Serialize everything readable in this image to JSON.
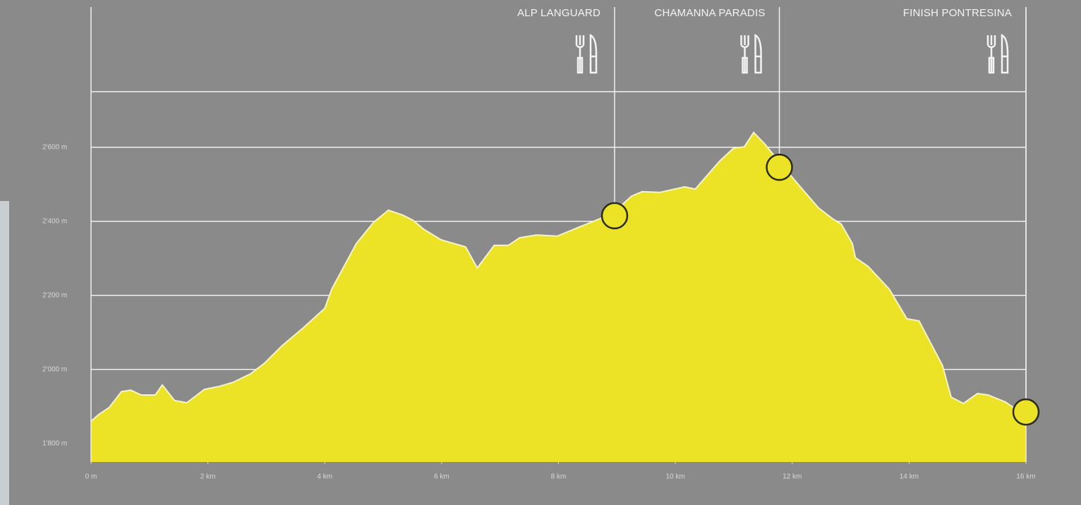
{
  "chart_data": {
    "type": "area",
    "color": "#ece326",
    "x": [
      0,
      0.13,
      0.31,
      0.52,
      0.68,
      0.86,
      1.1,
      1.22,
      1.43,
      1.64,
      1.94,
      2.19,
      2.43,
      2.73,
      2.97,
      3.27,
      3.63,
      4.0,
      4.12,
      4.54,
      4.84,
      5.09,
      5.33,
      5.51,
      5.69,
      5.99,
      6.41,
      6.61,
      6.9,
      7.14,
      7.34,
      7.62,
      7.98,
      8.35,
      8.71,
      8.96,
      9.25,
      9.43,
      9.73,
      10.16,
      10.34,
      10.76,
      11.0,
      11.18,
      11.34,
      11.54,
      11.78,
      12.09,
      12.45,
      12.69,
      12.84,
      13.03,
      13.08,
      13.3,
      13.66,
      13.96,
      14.17,
      14.57,
      14.72,
      14.93,
      15.17,
      15.35,
      15.65,
      16.0
    ],
    "values": [
      1860,
      1878,
      1897,
      1940,
      1944,
      1931,
      1931,
      1958,
      1916,
      1910,
      1946,
      1954,
      1965,
      1988,
      2017,
      2064,
      2112,
      2165,
      2217,
      2340,
      2398,
      2430,
      2417,
      2403,
      2379,
      2350,
      2331,
      2274,
      2335,
      2335,
      2356,
      2363,
      2360,
      2384,
      2407,
      2426,
      2468,
      2480,
      2478,
      2493,
      2487,
      2563,
      2598,
      2601,
      2640,
      2607,
      2560,
      2502,
      2436,
      2407,
      2392,
      2340,
      2302,
      2278,
      2217,
      2137,
      2131,
      2011,
      1925,
      1908,
      1935,
      1931,
      1912,
      1874
    ],
    "xlim": [
      0,
      16
    ],
    "ylim": [
      1750,
      2750
    ],
    "xticks": [
      {
        "value": 0,
        "label": "0 m"
      },
      {
        "value": 2,
        "label": "2 km"
      },
      {
        "value": 4,
        "label": "4 km"
      },
      {
        "value": 6,
        "label": "6 km"
      },
      {
        "value": 8,
        "label": "8 km"
      },
      {
        "value": 10,
        "label": "10 km"
      },
      {
        "value": 12,
        "label": "12 km"
      },
      {
        "value": 14,
        "label": "14 km"
      },
      {
        "value": 16,
        "label": "16 km"
      }
    ],
    "yticks": [
      {
        "value": 1800,
        "label": "1'800 m"
      },
      {
        "value": 2000,
        "label": "2'000 m"
      },
      {
        "value": 2200,
        "label": "2'200 m"
      },
      {
        "value": 2400,
        "label": "2'400 m"
      },
      {
        "value": 2600,
        "label": "2'600 m"
      }
    ],
    "grid": true,
    "waypoints": [
      {
        "label": "ALP LANGUARD",
        "x": 8.96,
        "elevation": 2415
      },
      {
        "label": "CHAMANNA PARADIS",
        "x": 11.78,
        "elevation": 2546
      },
      {
        "label": "FINISH PONTRESINA",
        "x": 16.0,
        "elevation": 1885
      }
    ]
  }
}
